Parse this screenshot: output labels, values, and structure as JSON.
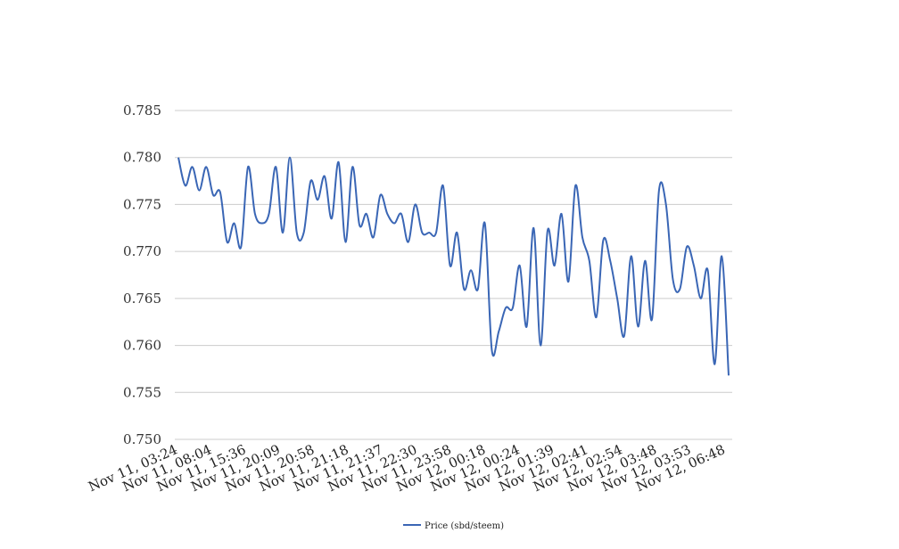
{
  "chart_data": {
    "type": "line",
    "title": "",
    "xlabel": "",
    "ylabel": "",
    "ylim": [
      0.75,
      0.785
    ],
    "y_ticks": [
      "0.750",
      "0.755",
      "0.760",
      "0.765",
      "0.770",
      "0.775",
      "0.780",
      "0.785"
    ],
    "x_tick_labels": [
      "Nov 11, 03:24",
      "Nov 11, 08:04",
      "Nov 11, 15:36",
      "Nov 11, 20:09",
      "Nov 11, 20:58",
      "Nov 11, 21:18",
      "Nov 11, 21:37",
      "Nov 11, 22:30",
      "Nov 11, 23:58",
      "Nov 12, 00:18",
      "Nov 12, 00:24",
      "Nov 12, 01:39",
      "Nov 12, 02:41",
      "Nov 12, 02:54",
      "Nov 12, 03:48",
      "Nov 12, 03:53",
      "Nov 12, 06:48"
    ],
    "grid": true,
    "legend_position": "bottom-center",
    "series": [
      {
        "name": "Price (sbd/steem)",
        "color": "#3a66b5",
        "values": [
          0.78,
          0.777,
          0.779,
          0.7765,
          0.779,
          0.776,
          0.7763,
          0.771,
          0.773,
          0.7705,
          0.779,
          0.774,
          0.773,
          0.774,
          0.779,
          0.772,
          0.78,
          0.772,
          0.772,
          0.7775,
          0.7755,
          0.778,
          0.7735,
          0.7795,
          0.771,
          0.779,
          0.7728,
          0.774,
          0.7715,
          0.776,
          0.774,
          0.773,
          0.774,
          0.771,
          0.775,
          0.772,
          0.772,
          0.772,
          0.777,
          0.7685,
          0.772,
          0.766,
          0.768,
          0.766,
          0.773,
          0.7595,
          0.7615,
          0.764,
          0.764,
          0.7685,
          0.762,
          0.7725,
          0.76,
          0.7722,
          0.7685,
          0.774,
          0.7668,
          0.777,
          0.7715,
          0.769,
          0.763,
          0.7712,
          0.769,
          0.765,
          0.761,
          0.7695,
          0.762,
          0.769,
          0.7628,
          0.7765,
          0.775,
          0.767,
          0.766,
          0.7705,
          0.7685,
          0.765,
          0.768,
          0.758,
          0.7695,
          0.7568
        ]
      }
    ]
  }
}
